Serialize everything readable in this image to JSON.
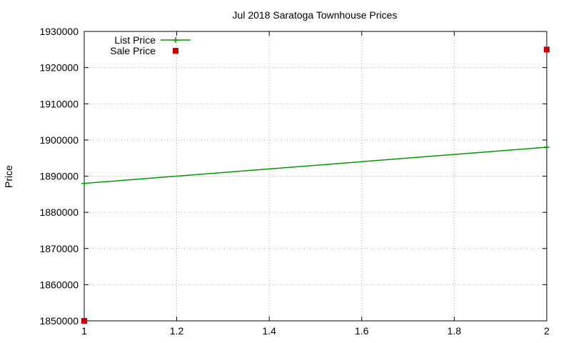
{
  "chart_data": {
    "type": "line",
    "title": "Jul 2018 Saratoga Townhouse Prices",
    "xlabel": "",
    "ylabel": "Price",
    "xlim": [
      1,
      2
    ],
    "ylim": [
      1850000,
      1930000
    ],
    "x_ticks": [
      1,
      1.2,
      1.4,
      1.6,
      1.8,
      2
    ],
    "x_tick_labels": [
      "1",
      "1.2",
      "1.4",
      "1.6",
      "1.8",
      "2"
    ],
    "y_ticks": [
      1850000,
      1860000,
      1870000,
      1880000,
      1890000,
      1900000,
      1910000,
      1920000,
      1930000
    ],
    "y_tick_labels": [
      "1850000",
      "1860000",
      "1870000",
      "1880000",
      "1890000",
      "1900000",
      "1910000",
      "1920000",
      "1930000"
    ],
    "grid": true,
    "legend_position": "top-left",
    "series": [
      {
        "name": "List Price",
        "style": "line-with-plus-markers",
        "color": "#009900",
        "points": [
          {
            "x": 1,
            "y": 1888000
          },
          {
            "x": 2,
            "y": 1898000
          }
        ]
      },
      {
        "name": "Sale Price",
        "style": "square-markers",
        "color": "#cc0000",
        "points": [
          {
            "x": 1,
            "y": 1850000
          },
          {
            "x": 2,
            "y": 1925000
          }
        ]
      }
    ]
  }
}
